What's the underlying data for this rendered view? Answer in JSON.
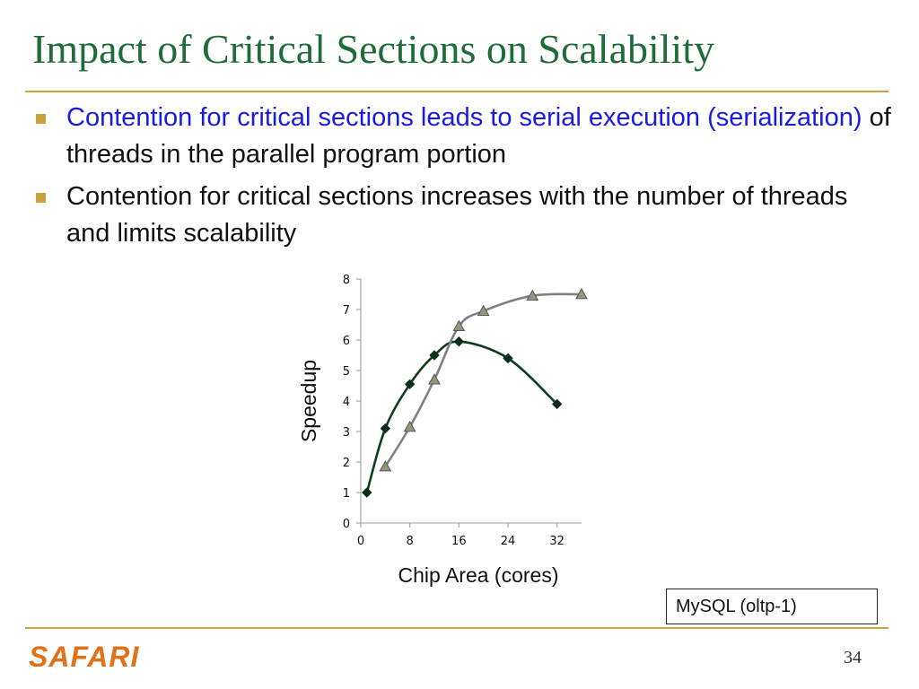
{
  "slide": {
    "title": "Impact of Critical Sections on Scalability",
    "bullets": [
      {
        "highlight": "Contention for critical sections leads to serial execution (serialization)",
        "rest": " of threads in the parallel program portion"
      },
      {
        "highlight": "",
        "rest": "Contention for critical sections increases with the number of threads and limits scalability"
      }
    ],
    "legend_box": "MySQL (oltp-1)",
    "logo": "SAFARI",
    "page_number": "34",
    "colors": {
      "title": "#1f6b3a",
      "accent": "#c9a43a",
      "highlight": "#1a1ae6",
      "logo": "#e0731a"
    }
  },
  "chart_data": {
    "type": "line",
    "xlabel": "Chip Area (cores)",
    "ylabel": "Speedup",
    "xlim": [
      0,
      36
    ],
    "ylim": [
      0,
      8
    ],
    "xticks": [
      0,
      8,
      16,
      24,
      32
    ],
    "yticks": [
      0,
      1,
      2,
      3,
      4,
      5,
      6,
      7,
      8
    ],
    "grid": false,
    "series": [
      {
        "color": "#0d3d1f",
        "marker": "diamond",
        "points": [
          [
            1,
            1
          ],
          [
            4,
            3.1
          ],
          [
            8,
            4.55
          ],
          [
            12,
            5.5
          ],
          [
            16,
            5.95
          ],
          [
            24,
            5.4
          ],
          [
            32,
            3.9
          ]
        ]
      },
      {
        "color": "#808080",
        "marker": "triangle",
        "points": [
          [
            4,
            1.85
          ],
          [
            8,
            3.15
          ],
          [
            12,
            4.7
          ],
          [
            16,
            6.45
          ],
          [
            20,
            6.95
          ],
          [
            28,
            7.45
          ],
          [
            36,
            7.5
          ]
        ]
      }
    ]
  }
}
